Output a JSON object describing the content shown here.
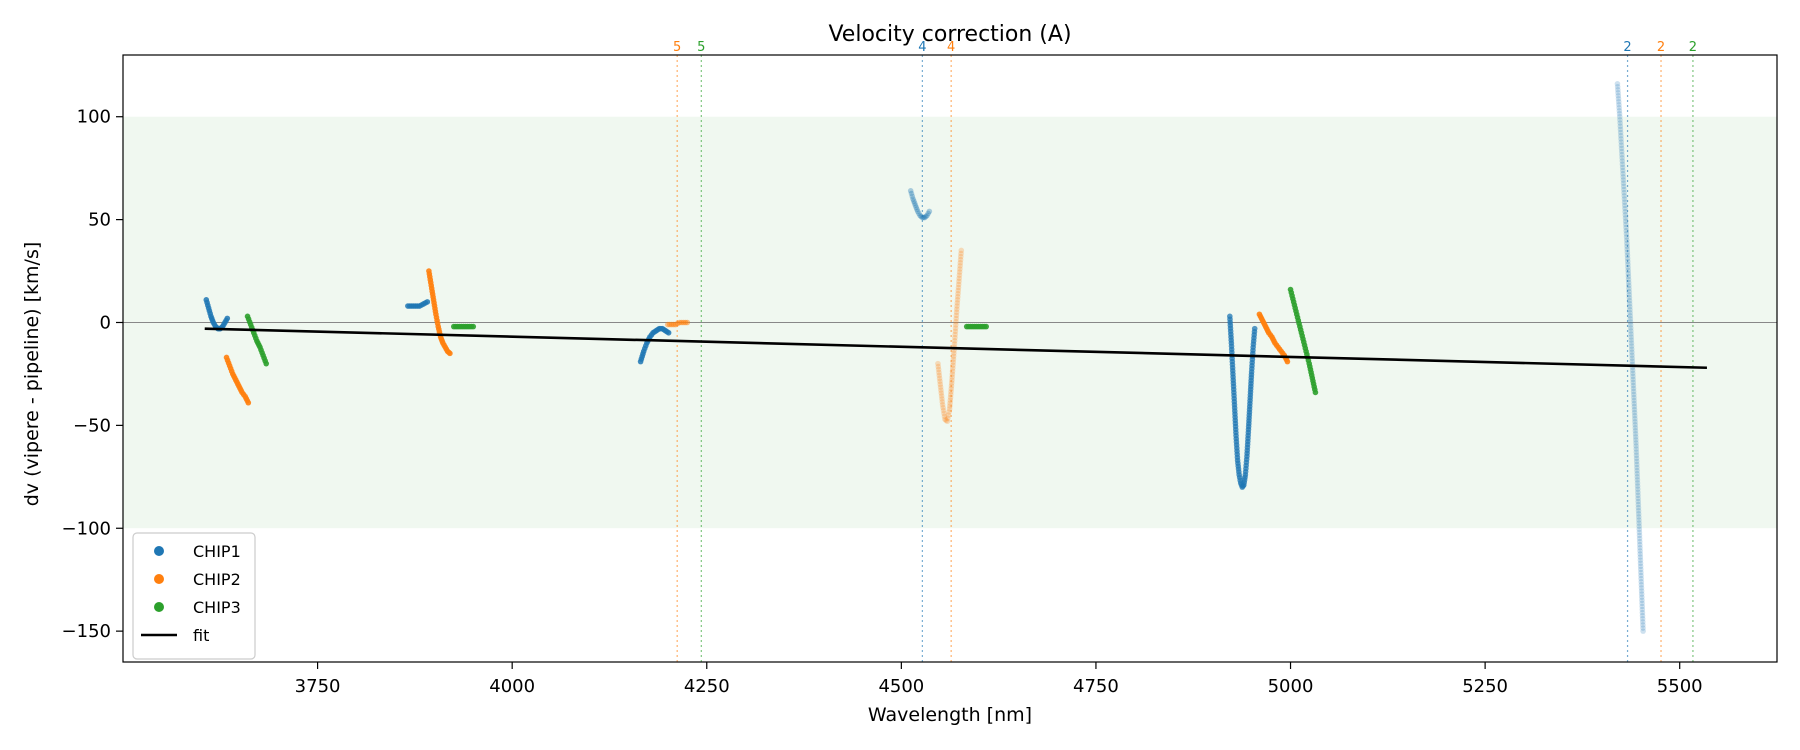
{
  "chart_data": {
    "type": "scatter",
    "title": "Velocity correction (A)",
    "xlabel": "Wavelength [nm]",
    "ylabel": "dv (vipere - pipeline) [km/s]",
    "xlim": [
      3500,
      5625
    ],
    "ylim": [
      -165,
      130
    ],
    "xticks": [
      3750,
      4000,
      4250,
      4500,
      4750,
      5000,
      5250,
      5500
    ],
    "yticks": [
      -150,
      -100,
      -50,
      0,
      50,
      100
    ],
    "xtick_labels": [
      "3750",
      "4000",
      "4250",
      "4500",
      "4750",
      "5000",
      "5250",
      "5500"
    ],
    "ytick_labels": [
      "−150",
      "−100",
      "−50",
      "0",
      "50",
      "100"
    ],
    "band": [
      -100,
      100
    ],
    "zero_line": 0,
    "colors": {
      "CHIP1": "#1f77b4",
      "CHIP2": "#ff7f0e",
      "CHIP3": "#2ca02c",
      "fit": "#000000",
      "band": "#e8f4e8"
    },
    "legend": {
      "position": "lower-left",
      "entries": [
        {
          "label": "CHIP1",
          "color": "#1f77b4",
          "kind": "dot"
        },
        {
          "label": "CHIP2",
          "color": "#ff7f0e",
          "kind": "dot"
        },
        {
          "label": "CHIP3",
          "color": "#2ca02c",
          "kind": "dot"
        },
        {
          "label": "fit",
          "color": "#000000",
          "kind": "line"
        }
      ]
    },
    "fit": {
      "x": [
        3605,
        5535
      ],
      "y": [
        -3,
        -22
      ]
    },
    "order_markers": [
      {
        "x": 4212,
        "label": "5",
        "color": "#ff7f0e"
      },
      {
        "x": 4243,
        "label": "5",
        "color": "#2ca02c"
      },
      {
        "x": 4527,
        "label": "4",
        "color": "#1f77b4"
      },
      {
        "x": 4564,
        "label": "4",
        "color": "#ff7f0e"
      },
      {
        "x": 5433,
        "label": "2",
        "color": "#1f77b4"
      },
      {
        "x": 5476,
        "label": "2",
        "color": "#ff7f0e"
      },
      {
        "x": 5517,
        "label": "2",
        "color": "#2ca02c"
      }
    ],
    "series": [
      {
        "name": "CHIP1",
        "alpha": 0.85,
        "x": [
          3607,
          3610,
          3613,
          3616,
          3619,
          3622,
          3625,
          3628,
          3631,
          3634
        ],
        "y": [
          11,
          7,
          3,
          0,
          -2,
          -3,
          -3,
          -2,
          0,
          2
        ]
      },
      {
        "name": "CHIP2",
        "alpha": 0.9,
        "x": [
          3633,
          3637,
          3641,
          3645,
          3649,
          3653,
          3657,
          3661
        ],
        "y": [
          -17,
          -21,
          -25,
          -28,
          -31,
          -34,
          -36,
          -39
        ]
      },
      {
        "name": "CHIP3",
        "alpha": 0.9,
        "x": [
          3660,
          3664,
          3668,
          3672,
          3676,
          3680,
          3684
        ],
        "y": [
          3,
          -1,
          -5,
          -9,
          -12,
          -16,
          -20
        ]
      },
      {
        "name": "CHIP1",
        "alpha": 0.85,
        "x": [
          3866,
          3871,
          3876,
          3881,
          3886,
          3891
        ],
        "y": [
          8,
          8,
          8,
          8,
          9,
          10
        ]
      },
      {
        "name": "CHIP2",
        "alpha": 0.9,
        "x": [
          3893,
          3896,
          3899,
          3902,
          3905,
          3908,
          3911,
          3914,
          3917,
          3920
        ],
        "y": [
          25,
          18,
          11,
          4,
          -2,
          -7,
          -10,
          -12,
          -14,
          -15
        ]
      },
      {
        "name": "CHIP3",
        "alpha": 0.9,
        "x": [
          3925,
          3930,
          3935,
          3940,
          3945,
          3950
        ],
        "y": [
          -2,
          -2,
          -2,
          -2,
          -2,
          -2
        ]
      },
      {
        "name": "CHIP1",
        "alpha": 0.85,
        "x": [
          4165,
          4169,
          4173,
          4177,
          4181,
          4185,
          4189,
          4193,
          4197,
          4201
        ],
        "y": [
          -19,
          -14,
          -10,
          -7,
          -5,
          -4,
          -3,
          -3,
          -4,
          -5
        ]
      },
      {
        "name": "CHIP2",
        "alpha": 0.5,
        "x": [
          4200,
          4205,
          4210,
          4215,
          4220,
          4225
        ],
        "y": [
          -1,
          -1,
          -1,
          0,
          0,
          0
        ]
      },
      {
        "name": "CHIP1",
        "alpha": 0.35,
        "x": [
          4512,
          4515,
          4518,
          4521,
          4524,
          4527,
          4530,
          4533,
          4536
        ],
        "y": [
          64,
          60,
          57,
          54,
          52,
          51,
          51,
          52,
          54
        ]
      },
      {
        "name": "CHIP2",
        "alpha": 0.25,
        "x": [
          4547,
          4550,
          4553,
          4556,
          4559,
          4562,
          4565,
          4568,
          4571,
          4574,
          4577
        ],
        "y": [
          -20,
          -30,
          -40,
          -47,
          -48,
          -42,
          -28,
          -12,
          5,
          20,
          35
        ]
      },
      {
        "name": "CHIP3",
        "alpha": 0.9,
        "x": [
          4584,
          4589,
          4594,
          4599,
          4604,
          4609
        ],
        "y": [
          -2,
          -2,
          -2,
          -2,
          -2,
          -2
        ]
      },
      {
        "name": "CHIP1",
        "alpha": 0.75,
        "x": [
          4922,
          4924,
          4926,
          4928,
          4930,
          4932,
          4934,
          4936,
          4938,
          4940,
          4942,
          4944,
          4946,
          4948,
          4950,
          4952,
          4954
        ],
        "y": [
          3,
          -10,
          -25,
          -40,
          -55,
          -67,
          -74,
          -78,
          -80,
          -79,
          -74,
          -65,
          -52,
          -38,
          -24,
          -12,
          -3
        ]
      },
      {
        "name": "CHIP2",
        "alpha": 0.9,
        "x": [
          4960,
          4964,
          4968,
          4972,
          4976,
          4980,
          4984,
          4988,
          4992,
          4996
        ],
        "y": [
          4,
          1,
          -2,
          -5,
          -7,
          -10,
          -12,
          -14,
          -16,
          -19
        ]
      },
      {
        "name": "CHIP3",
        "alpha": 0.9,
        "x": [
          5000,
          5004,
          5008,
          5012,
          5016,
          5020,
          5024,
          5028,
          5032
        ],
        "y": [
          16,
          10,
          4,
          -2,
          -8,
          -14,
          -20,
          -27,
          -34
        ]
      },
      {
        "name": "CHIP1",
        "alpha": 0.22,
        "x": [
          5420,
          5423,
          5426,
          5429,
          5432,
          5435,
          5438,
          5441,
          5444,
          5447,
          5450,
          5453
        ],
        "y": [
          116,
          100,
          80,
          60,
          40,
          15,
          -10,
          -35,
          -60,
          -90,
          -120,
          -150
        ]
      }
    ]
  }
}
